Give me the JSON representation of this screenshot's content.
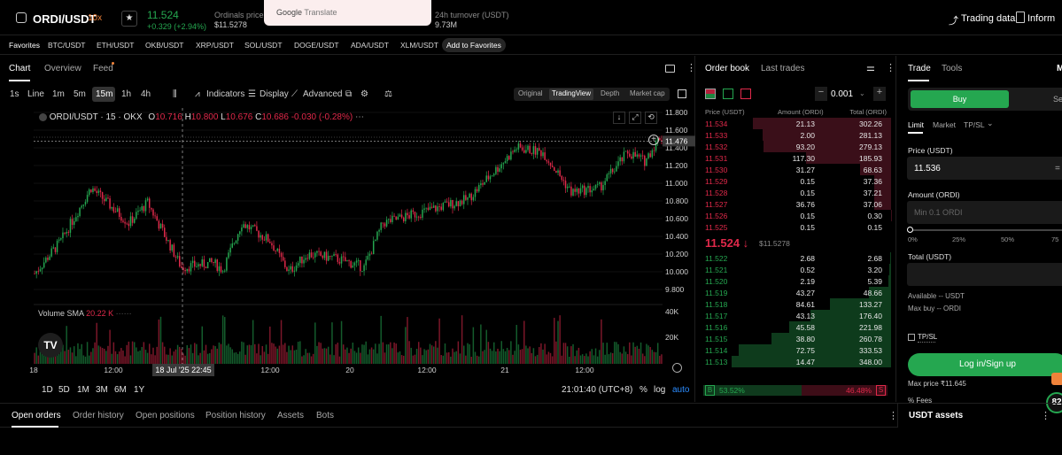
{
  "header": {
    "pair": "ORDI/USDT",
    "leverage": "10x",
    "last_price": "11.524",
    "change": "+0.329 (+2.94%)",
    "ordinals_label": "Ordinals price",
    "ordinals_value": "$11.5278",
    "translate_brand": "Google",
    "translate_label": "Translate",
    "turnover_label": "24h turnover (USDT)",
    "turnover_value": "9.73M",
    "trading_data": "Trading data",
    "info": "Inform"
  },
  "favorites": {
    "label": "Favorites",
    "items": [
      "BTC/USDT",
      "ETH/USDT",
      "OKB/USDT",
      "XRP/USDT",
      "SOL/USDT",
      "DOGE/USDT",
      "ADA/USDT",
      "XLM/USDT"
    ],
    "add_label": "Add to Favorites"
  },
  "chart_tabs": {
    "chart": "Chart",
    "overview": "Overview",
    "feed": "Feed"
  },
  "toolbar": {
    "timeframes": [
      "1s",
      "Line",
      "1m",
      "5m",
      "15m",
      "1h",
      "4h"
    ],
    "indicators": "Indicators",
    "display": "Display",
    "advanced": "Advanced",
    "sources": [
      "Original",
      "TradingView",
      "Depth",
      "Market cap"
    ]
  },
  "legend": {
    "symbol": "ORDI/USDT · 15 · OKX",
    "o_label": "O",
    "o": "10.716",
    "h_label": "H",
    "h": "10.800",
    "l_label": "L",
    "l": "10.676",
    "c_label": "C",
    "c": "10.686",
    "chg": "-0.030 (-0.28%)"
  },
  "volume_legend": {
    "label": "Volume",
    "sma": "SMA",
    "value": "20.22 K"
  },
  "y_axis": {
    "ticks": [
      "11.800",
      "11.600",
      "11.400",
      "11.200",
      "11.000",
      "10.800",
      "10.600",
      "10.400",
      "10.200",
      "10.000",
      "9.800"
    ],
    "current_tag": "11.476",
    "vol_ticks": [
      "40K",
      "20K"
    ]
  },
  "x_axis": {
    "ticks": [
      "18",
      "12:00",
      "12:00",
      "20",
      "12:00",
      "21",
      "12:00"
    ],
    "crosshair": "18 Jul '25   22:45"
  },
  "range_bar": {
    "ranges": [
      "1D",
      "5D",
      "1M",
      "3M",
      "6M",
      "1Y"
    ],
    "clock": "21:01:40 (UTC+8)",
    "pct": "%",
    "log": "log",
    "auto": "auto"
  },
  "order_book": {
    "tab_orderbook": "Order book",
    "tab_trades": "Last trades",
    "tick_size": "0.001",
    "col_price": "Price (USDT)",
    "col_amount": "Amount (ORDI)",
    "col_total": "Total (ORDI)",
    "asks": [
      {
        "price": "11.534",
        "amount": "21.13",
        "total": "302.26"
      },
      {
        "price": "11.533",
        "amount": "2.00",
        "total": "281.13"
      },
      {
        "price": "11.532",
        "amount": "93.20",
        "total": "279.13"
      },
      {
        "price": "11.531",
        "amount": "117.30",
        "total": "185.93"
      },
      {
        "price": "11.530",
        "amount": "31.27",
        "total": "68.63"
      },
      {
        "price": "11.529",
        "amount": "0.15",
        "total": "37.36"
      },
      {
        "price": "11.528",
        "amount": "0.15",
        "total": "37.21"
      },
      {
        "price": "11.527",
        "amount": "36.76",
        "total": "37.06"
      },
      {
        "price": "11.526",
        "amount": "0.15",
        "total": "0.30"
      },
      {
        "price": "11.525",
        "amount": "0.15",
        "total": "0.15"
      }
    ],
    "mid_price": "11.524 ↓",
    "mid_ref": "$11.5278",
    "bids": [
      {
        "price": "11.522",
        "amount": "2.68",
        "total": "2.68"
      },
      {
        "price": "11.521",
        "amount": "0.52",
        "total": "3.20"
      },
      {
        "price": "11.520",
        "amount": "2.19",
        "total": "5.39"
      },
      {
        "price": "11.519",
        "amount": "43.27",
        "total": "48.66"
      },
      {
        "price": "11.518",
        "amount": "84.61",
        "total": "133.27"
      },
      {
        "price": "11.517",
        "amount": "43.13",
        "total": "176.40"
      },
      {
        "price": "11.516",
        "amount": "45.58",
        "total": "221.98"
      },
      {
        "price": "11.515",
        "amount": "38.80",
        "total": "260.78"
      },
      {
        "price": "11.514",
        "amount": "72.75",
        "total": "333.53"
      },
      {
        "price": "11.513",
        "amount": "14.47",
        "total": "348.00"
      }
    ],
    "buy_ratio_label": "B",
    "buy_ratio": "53.52%",
    "buy_ratio_fraction": 0.5352,
    "sell_ratio": "46.48%",
    "sell_ratio_label": "S"
  },
  "trade": {
    "tab_trade": "Trade",
    "tab_tools": "Tools",
    "tab_m": "M",
    "buy": "Buy",
    "sell": "Se",
    "order_types": [
      "Limit",
      "Market",
      "TP/SL"
    ],
    "price_label": "Price (USDT)",
    "price_value": "11.536",
    "price_suffix": "=",
    "amount_label": "Amount (ORDI)",
    "amount_placeholder": "Min 0.1 ORDI",
    "slider_marks": [
      "0%",
      "25%",
      "50%",
      "75"
    ],
    "total_label": "Total (USDT)",
    "available": "Available -- USDT",
    "max_buy": "Max buy -- ORDI",
    "tpsl": "TP/SL",
    "login": "Log in/Sign up",
    "max_price": "Max price ₹11.645",
    "fees": "% Fees",
    "badge": "82"
  },
  "bottom_tabs": [
    "Open orders",
    "Order history",
    "Open positions",
    "Position history",
    "Assets",
    "Bots"
  ],
  "assets_title": "USDT assets",
  "colors": {
    "up": "#25a750",
    "down": "#e0294a",
    "accent": "#f0833a"
  }
}
